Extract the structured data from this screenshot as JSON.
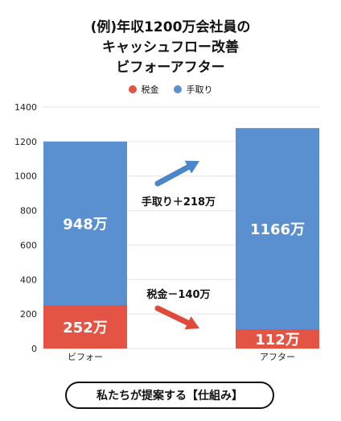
{
  "title_lines": [
    "(例)年収1200万会社員の",
    "キャッシュフロー改善",
    "ビフォーアフター"
  ],
  "legend": [
    {
      "label": "税金",
      "color": "#e35444"
    },
    {
      "label": "手取り",
      "color": "#5a8fd0"
    }
  ],
  "annotations": {
    "net_change": "手取り＋218万",
    "tax_change": "税金－140万"
  },
  "cta_label": "私たちが提案する【仕組み】",
  "colors": {
    "tax": "#e35444",
    "net": "#5a8fd0",
    "arrow_net": "#4a86c8",
    "arrow_tax": "#e04a3a"
  },
  "chart_data": {
    "type": "bar",
    "stacked": true,
    "categories": [
      "ビフォー",
      "アフター"
    ],
    "series": [
      {
        "name": "税金",
        "values": [
          252,
          112
        ],
        "labels": [
          "252万",
          "112万"
        ]
      },
      {
        "name": "手取り",
        "values": [
          948,
          1166
        ],
        "labels": [
          "948万",
          "1166万"
        ]
      }
    ],
    "ylim": [
      0,
      1400
    ],
    "yticks": [
      0,
      200,
      400,
      600,
      800,
      1000,
      1200,
      1400
    ],
    "grid": true,
    "legend_position": "top-center"
  }
}
